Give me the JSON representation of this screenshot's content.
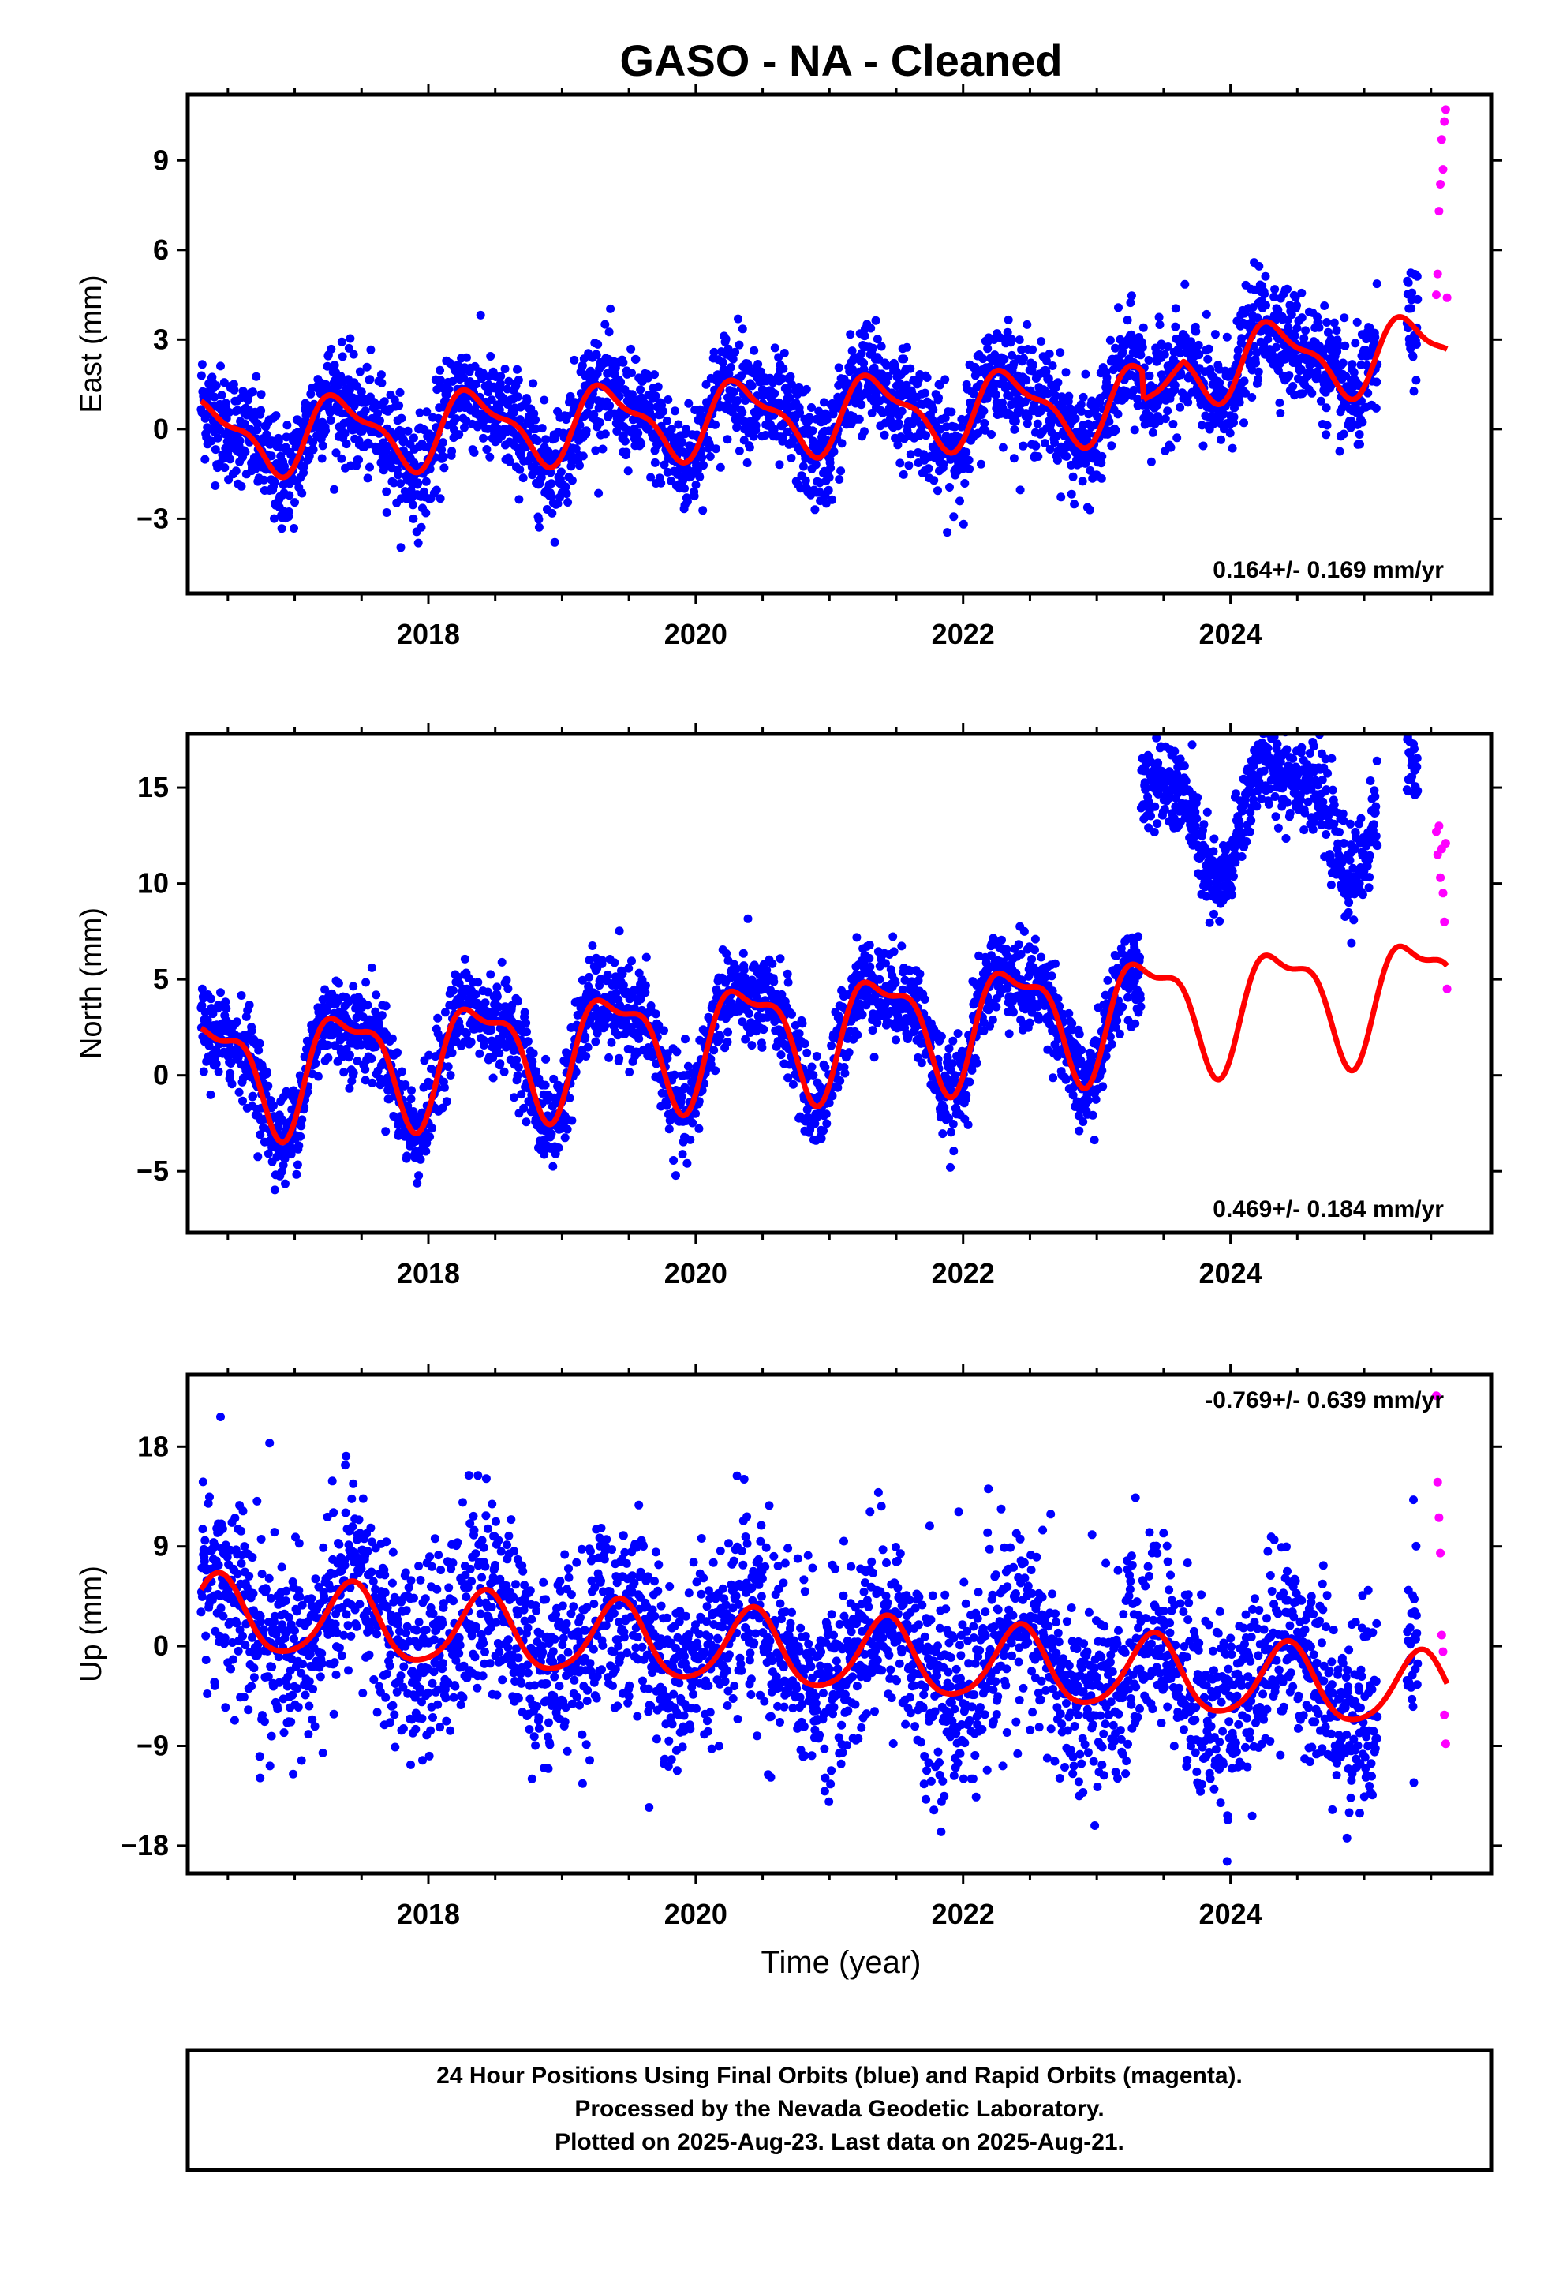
{
  "title": "GASO  - NA - Cleaned",
  "xlabel": "Time (year)",
  "footer": {
    "line1": "24 Hour Positions Using Final Orbits (blue) and Rapid Orbits (magenta).",
    "line2": "Processed by the Nevada Geodetic Laboratory.",
    "line3": "Plotted on 2025-Aug-23. Last data on 2025-Aug-21."
  },
  "colors": {
    "final": "#0000ff",
    "rapid": "#ff00ff",
    "model": "#ff0000",
    "frame": "#000000"
  },
  "chart_data": [
    {
      "type": "scatter",
      "component": "east",
      "ylabel": "East (mm)",
      "rate_label": "0.164+/- 0.169 mm/yr",
      "xlim": [
        2016.2,
        2025.95
      ],
      "ylim": [
        -5.5,
        11.2
      ],
      "x_ticks": [
        2018,
        2020,
        2022,
        2024
      ],
      "x_tick_labels": [
        "2018",
        "2020",
        "2022",
        "2024"
      ],
      "y_ticks": [
        -3,
        0,
        3,
        6,
        9
      ],
      "y_tick_labels": [
        "−3",
        "0",
        "3",
        "6",
        "9"
      ],
      "model_fit": {
        "segments": [
          [
            2016.3,
            2023.35
          ],
          [
            2023.35,
            2025.62
          ]
        ],
        "offsets": [
          0,
          -0.9
        ],
        "intercept": -0.27,
        "rate": 0.164,
        "ref_year": 2016.3,
        "annual_cos": -0.7,
        "annual_sin": 0.9,
        "semi_cos": -0.35,
        "semi_sin": 0.25,
        "post_jump_extra": 2.2
      },
      "series": [
        {
          "name": "Final Orbits",
          "color": "#0000ff",
          "time_span": [
            2016.3,
            2025.4
          ],
          "gaps": [
            [
              2025.1,
              2025.32
            ]
          ],
          "scatter_sd": 0.9,
          "approx_count": 3200
        },
        {
          "name": "Rapid Orbits",
          "color": "#ff00ff",
          "x": [
            2025.54,
            2025.55,
            2025.56,
            2025.57,
            2025.58,
            2025.59,
            2025.6,
            2025.61,
            2025.62
          ],
          "y": [
            4.5,
            5.2,
            7.3,
            8.2,
            9.7,
            8.7,
            10.3,
            10.7,
            4.4
          ]
        }
      ]
    },
    {
      "type": "scatter",
      "component": "north",
      "ylabel": "North (mm)",
      "rate_label": "0.469+/- 0.184 mm/yr",
      "xlim": [
        2016.2,
        2025.95
      ],
      "ylim": [
        -8.2,
        17.8
      ],
      "x_ticks": [
        2018,
        2020,
        2022,
        2024
      ],
      "x_tick_labels": [
        "2018",
        "2020",
        "2022",
        "2024"
      ],
      "y_ticks": [
        -5,
        0,
        5,
        10,
        15
      ],
      "y_tick_labels": [
        "−5",
        "0",
        "5",
        "10",
        "15"
      ],
      "model_fit": {
        "segments": [
          [
            2016.3,
            2023.35
          ],
          [
            2023.35,
            2025.62
          ]
        ],
        "offsets": [
          0,
          0
        ],
        "intercept": 0.1,
        "rate": 0.469,
        "ref_year": 2016.3,
        "annual_cos": -2.2,
        "annual_sin": 1.8,
        "semi_cos": -0.6,
        "semi_sin": 0.9,
        "data_jump_after": 2023.33,
        "data_jump_size": 10.0
      },
      "series": [
        {
          "name": "Final Orbits",
          "color": "#0000ff",
          "time_span": [
            2016.3,
            2025.4
          ],
          "gaps": [
            [
              2025.1,
              2025.32
            ]
          ],
          "scatter_sd": 1.2,
          "approx_count": 3200
        },
        {
          "name": "Rapid Orbits",
          "color": "#ff00ff",
          "x": [
            2025.54,
            2025.55,
            2025.56,
            2025.57,
            2025.58,
            2025.59,
            2025.6,
            2025.61,
            2025.62
          ],
          "y": [
            12.7,
            11.5,
            13.0,
            10.3,
            11.8,
            9.5,
            8.0,
            12.1,
            4.5
          ]
        }
      ]
    },
    {
      "type": "scatter",
      "component": "up",
      "ylabel": "Up (mm)",
      "rate_label": "-0.769+/- 0.639 mm/yr",
      "xlim": [
        2016.2,
        2025.95
      ],
      "ylim": [
        -20.5,
        24.5
      ],
      "x_ticks": [
        2018,
        2020,
        2022,
        2024
      ],
      "x_tick_labels": [
        "2018",
        "2020",
        "2022",
        "2024"
      ],
      "y_ticks": [
        -18,
        -9,
        0,
        9,
        18
      ],
      "y_tick_labels": [
        "−18",
        "−9",
        "0",
        "9",
        "18"
      ],
      "model_fit": {
        "segments": [
          [
            2016.3,
            2025.62
          ]
        ],
        "offsets": [
          0
        ],
        "intercept": 2.9,
        "rate": -0.769,
        "ref_year": 2016.3,
        "annual_cos": -3.0,
        "annual_sin": 1.5,
        "semi_cos": 0.4,
        "semi_sin": -0.3
      },
      "series": [
        {
          "name": "Final Orbits",
          "color": "#0000ff",
          "time_span": [
            2016.3,
            2025.4
          ],
          "gaps": [
            [
              2025.1,
              2025.32
            ]
          ],
          "scatter_sd": 4.2,
          "approx_count": 3200
        },
        {
          "name": "Rapid Orbits",
          "color": "#ff00ff",
          "x": [
            2025.54,
            2025.55,
            2025.56,
            2025.57,
            2025.58,
            2025.59,
            2025.6,
            2025.61
          ],
          "y": [
            22.6,
            14.8,
            11.6,
            8.4,
            1.0,
            -0.5,
            -6.2,
            -8.8
          ]
        }
      ]
    }
  ]
}
